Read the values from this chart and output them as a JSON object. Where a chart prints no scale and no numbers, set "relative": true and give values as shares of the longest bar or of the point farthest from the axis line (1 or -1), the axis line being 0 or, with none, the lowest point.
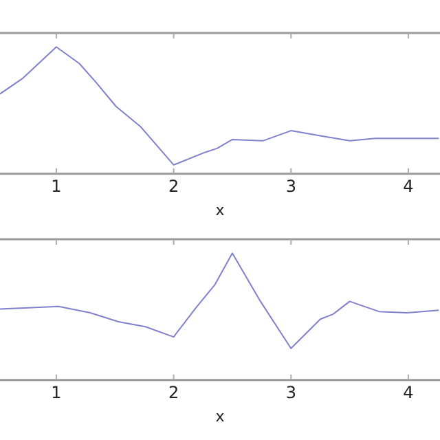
{
  "chart_data": [
    {
      "type": "line",
      "xlabel": "x",
      "relative": true,
      "xlim": [
        0.52,
        4.27
      ],
      "xticks": [
        1,
        2,
        3,
        4
      ],
      "grid": false,
      "legend": false,
      "series": [
        {
          "color": "#8080cc",
          "x": [
            0.52,
            0.71,
            1.0,
            1.195,
            1.33,
            1.51,
            1.72,
            2.0,
            2.27,
            2.37,
            2.5,
            2.76,
            3.0,
            3.25,
            3.5,
            3.72,
            4.26
          ],
          "values": [
            0.63,
            0.75,
            1,
            0.87,
            0.73,
            0.53,
            0.37,
            0.07,
            0.17,
            0.2,
            0.27,
            0.26,
            0.34,
            0.3,
            0.26,
            0.28,
            0.28
          ]
        }
      ]
    },
    {
      "type": "line",
      "xlabel": "x",
      "relative": true,
      "xlim": [
        0.52,
        4.27
      ],
      "xticks": [
        1,
        2,
        3,
        4
      ],
      "grid": false,
      "legend": false,
      "series": [
        {
          "color": "#8080cc",
          "x": [
            0.52,
            1.02,
            1.29,
            1.53,
            1.76,
            2.0,
            2.19,
            2.35,
            2.5,
            2.74,
            3.0,
            3.25,
            3.36,
            3.5,
            3.75,
            3.99,
            4.26
          ],
          "values": [
            0.56,
            0.58,
            0.53,
            0.46,
            0.42,
            0.34,
            0.57,
            0.75,
            1,
            0.62,
            0.25,
            0.48,
            0.52,
            0.62,
            0.54,
            0.53,
            0.55
          ]
        }
      ]
    }
  ]
}
